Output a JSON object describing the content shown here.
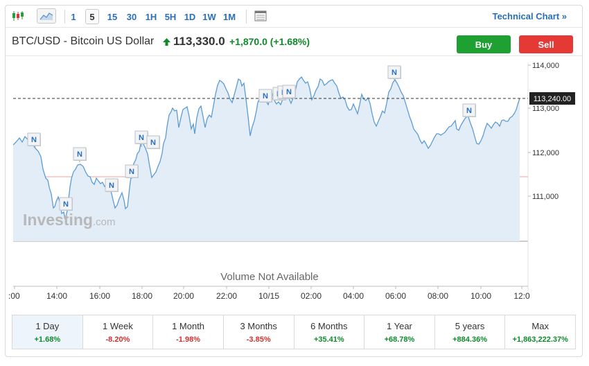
{
  "toolbar": {
    "icons": [
      "candlestick-icon",
      "area-chart-icon",
      "table-icon"
    ],
    "intervals": [
      "1",
      "5",
      "15",
      "30",
      "1H",
      "5H",
      "1D",
      "1W",
      "1M"
    ],
    "active_interval": "5",
    "technical_link": "Technical Chart »"
  },
  "header": {
    "symbol": "BTC/USD - Bitcoin US Dollar",
    "price": "113,330.0",
    "change": "+1,870.0",
    "change_pct": "(+1.68%)",
    "buy_label": "Buy",
    "sell_label": "Sell"
  },
  "chart": {
    "current_price_label": "113,240.00",
    "y_ticks": [
      "114,000",
      "113,000",
      "112,000",
      "111,000"
    ],
    "x_ticks": [
      ":00",
      "14:00",
      "16:00",
      "18:00",
      "20:00",
      "22:00",
      "10/15",
      "02:00",
      "04:00",
      "06:00",
      "08:00",
      "10:00",
      "12:0"
    ],
    "watermark": "Investing",
    "watermark_suffix": ".com",
    "volume_text": "Volume Not Available",
    "news_marker": "N",
    "colors": {
      "line": "#5b9bd5",
      "area": "#e3edf7",
      "ref_line": "#e8a0a0"
    }
  },
  "periods": [
    {
      "label": "1 Day",
      "value": "+1.68%",
      "active": true
    },
    {
      "label": "1 Week",
      "value": "-8.20%"
    },
    {
      "label": "1 Month",
      "value": "-1.98%"
    },
    {
      "label": "3 Months",
      "value": "-3.85%"
    },
    {
      "label": "6 Months",
      "value": "+35.41%"
    },
    {
      "label": "1 Year",
      "value": "+68.78%"
    },
    {
      "label": "5 years",
      "value": "+884.36%"
    },
    {
      "label": "Max",
      "value": "+1,863,222.37%"
    }
  ]
}
